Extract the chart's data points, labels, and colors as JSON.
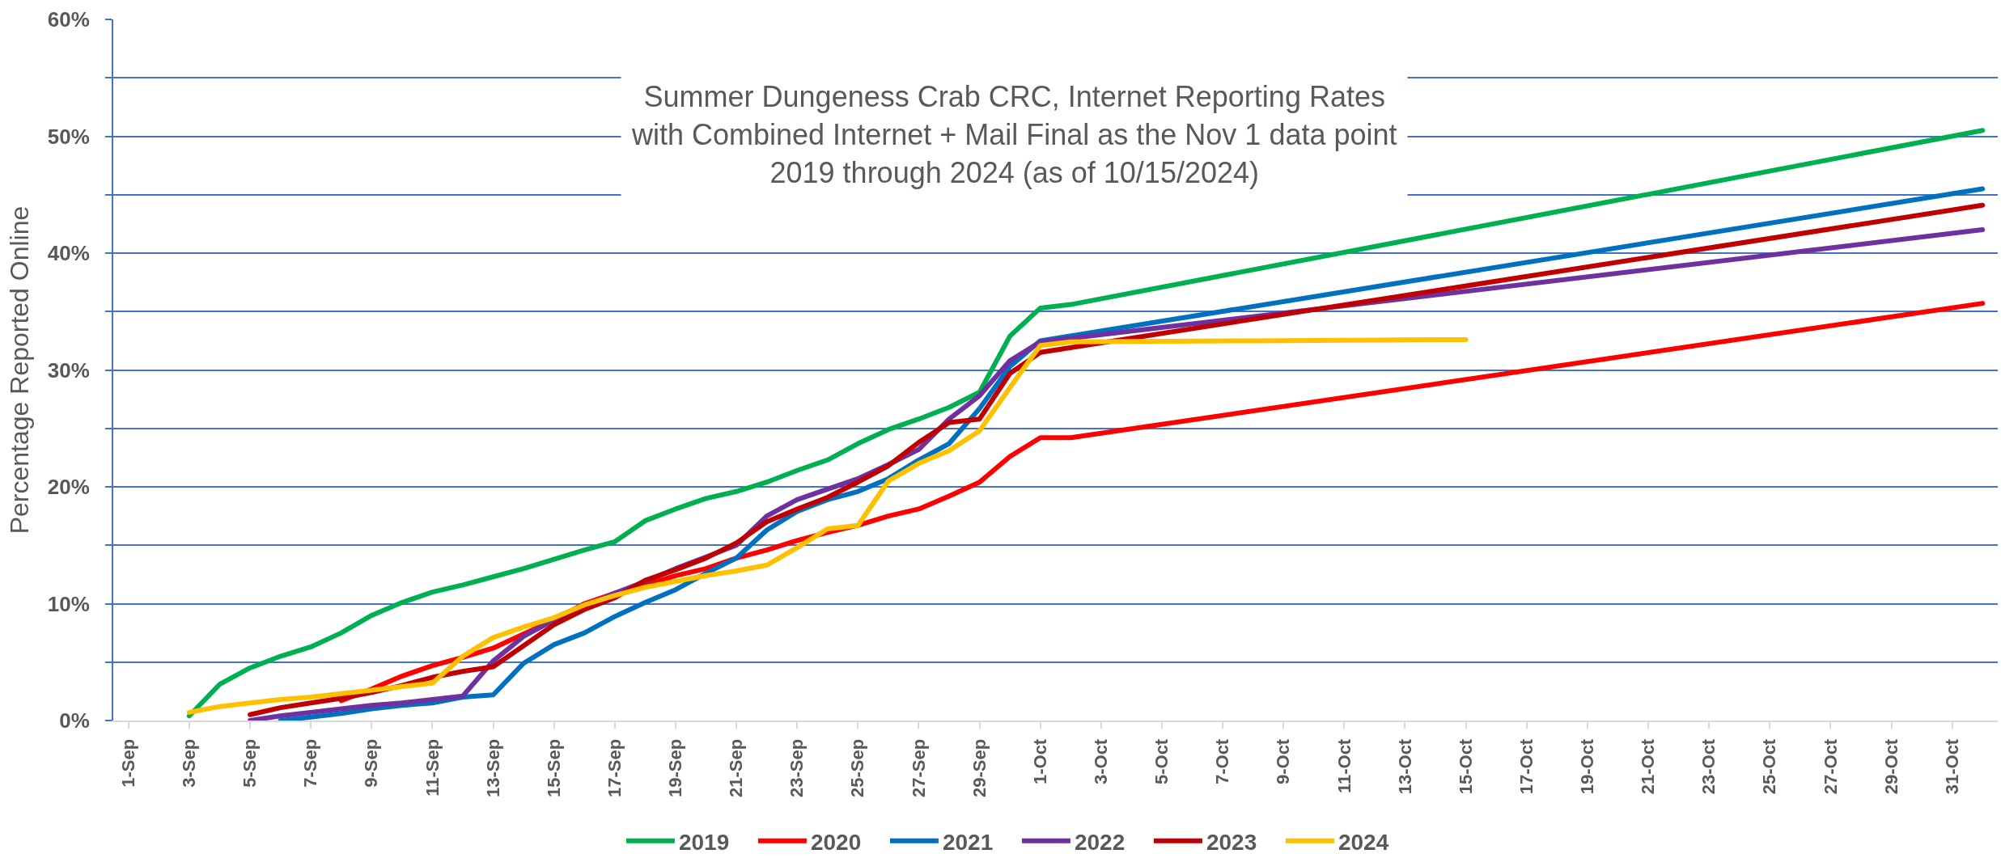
{
  "chart_data": {
    "type": "line",
    "title": "Summer Dungeness Crab CRC, Internet Reporting Rates\nwith Combined Internet + Mail Final as the Nov 1 data point\n2019 through 2024 (as of 10/15/2024)",
    "ylabel": "Percentage Reported Online",
    "xlim": [
      "--08-31T12:00",
      "--11-01T12:00"
    ],
    "xticks": [
      {
        "value": "--09-01",
        "label": "1-Sep"
      },
      {
        "value": "--09-03",
        "label": "3-Sep"
      },
      {
        "value": "--09-05",
        "label": "5-Sep"
      },
      {
        "value": "--09-07",
        "label": "7-Sep"
      },
      {
        "value": "--09-09",
        "label": "9-Sep"
      },
      {
        "value": "--09-11",
        "label": "11-Sep"
      },
      {
        "value": "--09-13",
        "label": "13-Sep"
      },
      {
        "value": "--09-15",
        "label": "15-Sep"
      },
      {
        "value": "--09-17",
        "label": "17-Sep"
      },
      {
        "value": "--09-19",
        "label": "19-Sep"
      },
      {
        "value": "--09-21",
        "label": "21-Sep"
      },
      {
        "value": "--09-23",
        "label": "23-Sep"
      },
      {
        "value": "--09-25",
        "label": "25-Sep"
      },
      {
        "value": "--09-27",
        "label": "27-Sep"
      },
      {
        "value": "--09-29",
        "label": "29-Sep"
      },
      {
        "value": "--10-01",
        "label": "1-Oct"
      },
      {
        "value": "--10-03",
        "label": "3-Oct"
      },
      {
        "value": "--10-05",
        "label": "5-Oct"
      },
      {
        "value": "--10-07",
        "label": "7-Oct"
      },
      {
        "value": "--10-09",
        "label": "9-Oct"
      },
      {
        "value": "--10-11",
        "label": "11-Oct"
      },
      {
        "value": "--10-13",
        "label": "13-Oct"
      },
      {
        "value": "--10-15",
        "label": "15-Oct"
      },
      {
        "value": "--10-17",
        "label": "17-Oct"
      },
      {
        "value": "--10-19",
        "label": "19-Oct"
      },
      {
        "value": "--10-21",
        "label": "21-Oct"
      },
      {
        "value": "--10-23",
        "label": "23-Oct"
      },
      {
        "value": "--10-25",
        "label": "25-Oct"
      },
      {
        "value": "--10-27",
        "label": "27-Oct"
      },
      {
        "value": "--10-29",
        "label": "29-Oct"
      },
      {
        "value": "--10-31",
        "label": "31-Oct"
      }
    ],
    "ylim": [
      0,
      60
    ],
    "yticks": [
      {
        "value": 0,
        "label": "0%"
      },
      {
        "value": 5,
        "label": null
      },
      {
        "value": 10,
        "label": "10%"
      },
      {
        "value": 15,
        "label": null
      },
      {
        "value": 20,
        "label": "20%"
      },
      {
        "value": 25,
        "label": null
      },
      {
        "value": 30,
        "label": "30%"
      },
      {
        "value": 35,
        "label": null
      },
      {
        "value": 40,
        "label": "40%"
      },
      {
        "value": 45,
        "label": null
      },
      {
        "value": 50,
        "label": "50%"
      },
      {
        "value": 55,
        "label": null
      },
      {
        "value": 60,
        "label": "60%"
      }
    ],
    "grid": "y",
    "legend": "bottom",
    "line_style": "solid",
    "series": [
      {
        "name": "2019",
        "color": "#00b050",
        "x": [
          "--09-03",
          "--09-04",
          "--09-05",
          "--09-06",
          "--09-07",
          "--09-08",
          "--09-09",
          "--09-10",
          "--09-11",
          "--09-12",
          "--09-13",
          "--09-14",
          "--09-15",
          "--09-16",
          "--09-17",
          "--09-18",
          "--09-19",
          "--09-20",
          "--09-21",
          "--09-22",
          "--09-23",
          "--09-24",
          "--09-25",
          "--09-26",
          "--09-27",
          "--09-28",
          "--09-29",
          "--09-30",
          "--10-01",
          "--10-02",
          "--11-01"
        ],
        "values": [
          0.4,
          3.1,
          4.5,
          5.5,
          6.3,
          7.5,
          9.0,
          10.1,
          11.0,
          11.6,
          12.3,
          13.0,
          13.8,
          14.6,
          15.3,
          17.1,
          18.1,
          19.0,
          19.6,
          20.4,
          21.4,
          22.3,
          23.7,
          24.9,
          25.8,
          26.8,
          28.1,
          32.9,
          35.3,
          35.6,
          50.5
        ]
      },
      {
        "name": "2020",
        "color": "#ff0000",
        "x": [
          "--09-08",
          "--09-09",
          "--09-10",
          "--09-11",
          "--09-12",
          "--09-13",
          "--09-14",
          "--09-15",
          "--09-16",
          "--09-17",
          "--09-18",
          "--09-19",
          "--09-20",
          "--09-21",
          "--09-22",
          "--09-23",
          "--09-24",
          "--09-25",
          "--09-26",
          "--09-27",
          "--09-28",
          "--09-29",
          "--09-30",
          "--10-01",
          "--10-02",
          "--11-01"
        ],
        "values": [
          1.7,
          2.7,
          3.8,
          4.7,
          5.4,
          6.2,
          7.4,
          8.6,
          10.0,
          10.9,
          11.6,
          12.4,
          13.0,
          13.9,
          14.6,
          15.4,
          16.1,
          16.7,
          17.5,
          18.1,
          19.2,
          20.4,
          22.6,
          24.2,
          24.2,
          35.7
        ]
      },
      {
        "name": "2021",
        "color": "#0070c0",
        "x": [
          "--09-06",
          "--09-07",
          "--09-08",
          "--09-09",
          "--09-10",
          "--09-11",
          "--09-12",
          "--09-13",
          "--09-14",
          "--09-15",
          "--09-16",
          "--09-17",
          "--09-18",
          "--09-19",
          "--09-20",
          "--09-21",
          "--09-22",
          "--09-23",
          "--09-24",
          "--09-25",
          "--09-26",
          "--09-27",
          "--09-28",
          "--09-29",
          "--09-30",
          "--10-01",
          "--11-01"
        ],
        "values": [
          0.0,
          0.3,
          0.6,
          1.0,
          1.3,
          1.5,
          2.0,
          2.2,
          4.9,
          6.5,
          7.5,
          8.9,
          10.1,
          11.2,
          12.6,
          13.9,
          16.3,
          17.9,
          18.9,
          19.6,
          20.7,
          22.3,
          23.7,
          26.7,
          30.3,
          32.5,
          45.5
        ]
      },
      {
        "name": "2022",
        "color": "#7030a0",
        "x": [
          "--09-05",
          "--09-06",
          "--09-07",
          "--09-08",
          "--09-09",
          "--09-10",
          "--09-11",
          "--09-12",
          "--09-13",
          "--09-14",
          "--09-15",
          "--09-16",
          "--09-17",
          "--09-18",
          "--09-19",
          "--09-20",
          "--09-21",
          "--09-22",
          "--09-23",
          "--09-24",
          "--09-25",
          "--09-26",
          "--09-27",
          "--09-28",
          "--09-29",
          "--09-30",
          "--10-01",
          "--11-01"
        ],
        "values": [
          0.0,
          0.4,
          0.7,
          1.0,
          1.3,
          1.5,
          1.8,
          2.1,
          5.1,
          7.2,
          8.6,
          9.8,
          10.9,
          11.9,
          13.0,
          14.0,
          15.0,
          17.5,
          18.9,
          19.8,
          20.7,
          21.9,
          23.2,
          25.8,
          27.8,
          30.8,
          32.4,
          42.0
        ]
      },
      {
        "name": "2023",
        "color": "#c00000",
        "x": [
          "--09-05",
          "--09-06",
          "--09-07",
          "--09-08",
          "--09-09",
          "--09-10",
          "--09-11",
          "--09-12",
          "--09-13",
          "--09-14",
          "--09-15",
          "--09-16",
          "--09-17",
          "--09-18",
          "--09-19",
          "--09-20",
          "--09-21",
          "--09-22",
          "--09-23",
          "--09-24",
          "--09-25",
          "--09-26",
          "--09-27",
          "--09-28",
          "--09-29",
          "--09-30",
          "--10-01",
          "--11-01"
        ],
        "values": [
          0.5,
          1.1,
          1.5,
          1.9,
          2.4,
          3.0,
          3.7,
          4.2,
          4.6,
          6.4,
          8.2,
          9.5,
          10.5,
          12.0,
          12.9,
          13.9,
          15.2,
          17.0,
          18.1,
          19.1,
          20.4,
          21.8,
          23.8,
          25.5,
          25.8,
          29.7,
          31.5,
          44.1
        ]
      },
      {
        "name": "2024",
        "color": "#ffc000",
        "x": [
          "--09-03",
          "--09-04",
          "--09-05",
          "--09-06",
          "--09-07",
          "--09-08",
          "--09-09",
          "--09-10",
          "--09-11",
          "--09-12",
          "--09-13",
          "--09-14",
          "--09-15",
          "--09-16",
          "--09-17",
          "--09-18",
          "--09-19",
          "--09-20",
          "--09-21",
          "--09-22",
          "--09-23",
          "--09-24",
          "--09-25",
          "--09-26",
          "--09-27",
          "--09-28",
          "--09-29",
          "--09-30",
          "--10-01",
          "--10-02",
          "--10-08",
          "--10-15"
        ],
        "values": [
          0.7,
          1.2,
          1.5,
          1.8,
          2.0,
          2.3,
          2.6,
          2.9,
          3.2,
          5.5,
          7.1,
          8.0,
          8.8,
          9.9,
          10.7,
          11.4,
          11.9,
          12.4,
          12.8,
          13.3,
          14.8,
          16.4,
          16.7,
          20.5,
          22.0,
          23.1,
          24.8,
          28.5,
          32.1,
          32.4,
          32.5,
          32.6
        ]
      }
    ]
  }
}
